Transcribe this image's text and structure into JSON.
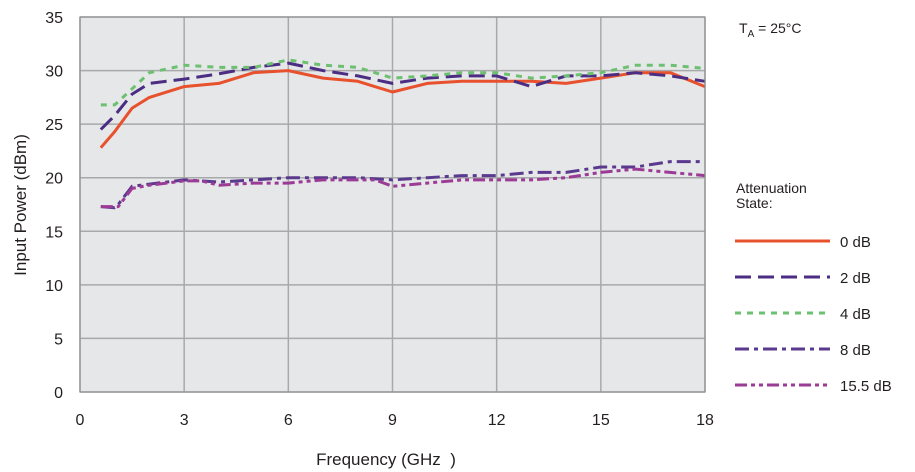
{
  "annotation": {
    "main": "T",
    "sub": "A",
    "rest": " = 25°C"
  },
  "chart_data": {
    "type": "line",
    "title": "",
    "xlabel": "Frequency (GHz  )",
    "ylabel": "Input Power (dBm)",
    "xlim": [
      0,
      18
    ],
    "ylim": [
      0,
      35
    ],
    "xticks": [
      0,
      3,
      6,
      9,
      12,
      15,
      18
    ],
    "yticks": [
      0,
      5,
      10,
      15,
      20,
      25,
      30,
      35
    ],
    "grid": true,
    "background": "#e6e7e8",
    "legend": {
      "title_lines": [
        "Attenuation",
        "State:"
      ],
      "placement": "right"
    },
    "series": [
      {
        "name": "0 dB",
        "color": "#e8512d",
        "dash": "solid",
        "x": [
          0.6,
          1.0,
          1.5,
          2.0,
          3.0,
          4.0,
          5.0,
          6.0,
          7.0,
          8.0,
          9.0,
          10.0,
          11.0,
          12.0,
          13.0,
          14.0,
          15.0,
          16.0,
          17.0,
          18.0
        ],
        "y": [
          22.8,
          24.3,
          26.5,
          27.5,
          28.5,
          28.8,
          29.8,
          30.0,
          29.3,
          29.0,
          28.0,
          28.8,
          29.0,
          29.0,
          29.0,
          28.8,
          29.3,
          29.8,
          29.8,
          28.5
        ]
      },
      {
        "name": "2 dB",
        "color": "#4b2e83",
        "dash": "long-dash",
        "x": [
          0.6,
          1.0,
          1.5,
          2.0,
          3.0,
          4.0,
          5.0,
          6.0,
          7.0,
          8.0,
          9.0,
          10.0,
          11.0,
          12.0,
          13.0,
          14.0,
          15.0,
          16.0,
          17.0,
          18.0
        ],
        "y": [
          24.5,
          25.8,
          27.8,
          28.8,
          29.2,
          29.7,
          30.3,
          30.7,
          30.0,
          29.5,
          28.8,
          29.3,
          29.5,
          29.5,
          28.5,
          29.5,
          29.5,
          29.8,
          29.5,
          29.0
        ]
      },
      {
        "name": "4 dB",
        "color": "#6cc070",
        "dash": "dotted",
        "x": [
          0.6,
          1.0,
          1.5,
          2.0,
          3.0,
          4.0,
          5.0,
          6.0,
          7.0,
          8.0,
          9.0,
          10.0,
          11.0,
          12.0,
          13.0,
          14.0,
          15.0,
          16.0,
          17.0,
          18.0
        ],
        "y": [
          26.8,
          26.8,
          28.3,
          29.8,
          30.5,
          30.3,
          30.3,
          31.0,
          30.5,
          30.3,
          29.3,
          29.5,
          29.8,
          29.8,
          29.3,
          29.5,
          29.8,
          30.5,
          30.5,
          30.2
        ]
      },
      {
        "name": "8 dB",
        "color": "#5a3a8e",
        "dash": "dash-dot",
        "x": [
          0.6,
          1.0,
          1.1,
          1.5,
          2.0,
          3.0,
          4.0,
          5.0,
          6.0,
          7.0,
          8.0,
          9.0,
          10.0,
          11.0,
          12.0,
          13.0,
          14.0,
          15.0,
          16.0,
          17.0,
          18.0
        ],
        "y": [
          17.3,
          17.2,
          17.5,
          19.2,
          19.4,
          19.8,
          19.6,
          19.8,
          20.0,
          20.0,
          20.0,
          19.8,
          20.0,
          20.2,
          20.2,
          20.5,
          20.5,
          21.0,
          21.0,
          21.5,
          21.5
        ]
      },
      {
        "name": "15.5 dB",
        "color": "#9b3b96",
        "dash": "dash-dot-dot",
        "x": [
          0.6,
          1.0,
          1.1,
          1.5,
          2.0,
          3.0,
          3.5,
          4.0,
          5.0,
          6.0,
          7.0,
          8.0,
          8.5,
          9.0,
          10.0,
          11.0,
          12.0,
          13.0,
          14.0,
          15.0,
          16.0,
          17.0,
          18.0
        ],
        "y": [
          17.3,
          17.3,
          17.3,
          19.0,
          19.3,
          19.7,
          19.7,
          19.3,
          19.5,
          19.5,
          19.8,
          19.8,
          19.8,
          19.2,
          19.5,
          19.8,
          19.8,
          19.8,
          20.0,
          20.5,
          20.8,
          20.5,
          20.2
        ]
      }
    ]
  }
}
